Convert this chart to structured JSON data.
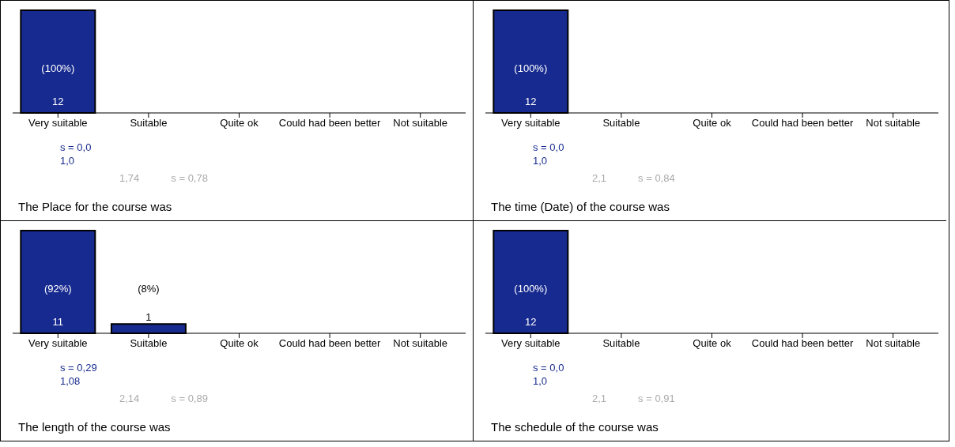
{
  "chart_data": [
    {
      "type": "bar",
      "title": "The Place for the course was",
      "categories": [
        "Very suitable",
        "Suitable",
        "Quite ok",
        "Could had been better",
        "Not suitable"
      ],
      "values": [
        12,
        0,
        0,
        0,
        0
      ],
      "color": "#172a8f",
      "value_labels": [
        "12",
        null,
        null,
        null,
        null
      ],
      "annotations": [
        "(100%)",
        "s = 0,0",
        "1,0",
        "1,74",
        "s = 0,78"
      ]
    },
    {
      "type": "bar",
      "title": "The time (Date) of the course was",
      "categories": [
        "Very suitable",
        "Suitable",
        "Quite ok",
        "Could had been better",
        "Not suitable"
      ],
      "values": [
        12,
        0,
        0,
        0,
        0
      ],
      "color": "#172a8f",
      "value_labels": [
        "12",
        null,
        null,
        null,
        null
      ],
      "annotations": [
        "(100%)",
        "s = 0,0",
        "1,0",
        "2,1",
        "s = 0,84"
      ]
    },
    {
      "type": "bar",
      "title": "The length of the course was",
      "categories": [
        "Very suitable",
        "Suitable",
        "Quite ok",
        "Could had been better",
        "Not suitable"
      ],
      "values": [
        11,
        1,
        0,
        0,
        0
      ],
      "color": "#172a8f",
      "value_labels": [
        "11",
        "1",
        null,
        null,
        null
      ],
      "annotations": [
        "(92%)",
        "(8%)",
        "s = 0,29",
        "1,08",
        "2,14",
        "s = 0,89"
      ]
    },
    {
      "type": "bar",
      "title": "The schedule of the course was",
      "categories": [
        "Very suitable",
        "Suitable",
        "Quite ok",
        "Could had been better",
        "Not suitable"
      ],
      "values": [
        12,
        0,
        0,
        0,
        0
      ],
      "color": "#172a8f",
      "value_labels": [
        "12",
        null,
        null,
        null,
        null
      ],
      "annotations": [
        "(100%)",
        "s = 0,0",
        "1,0",
        "2,1",
        "s = 0,91"
      ]
    }
  ]
}
